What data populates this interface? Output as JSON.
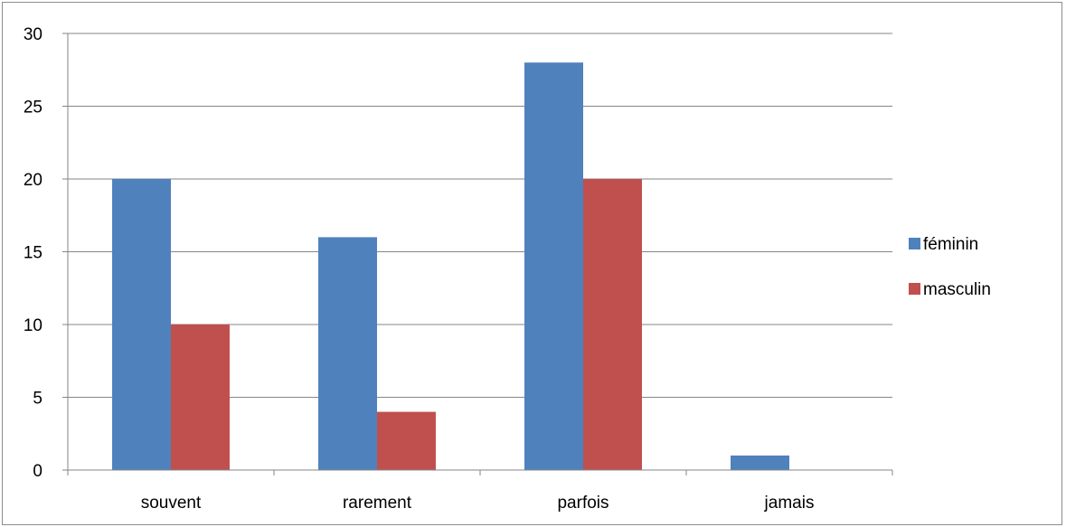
{
  "chart_data": {
    "type": "bar",
    "title": "",
    "xlabel": "",
    "ylabel": "",
    "categories": [
      "souvent",
      "rarement",
      "parfois",
      "jamais"
    ],
    "series": [
      {
        "name": "féminin",
        "values": [
          20,
          16,
          28,
          1
        ],
        "color": "#4f81bd"
      },
      {
        "name": "masculin",
        "values": [
          10,
          4,
          20,
          0
        ],
        "color": "#c0504d"
      }
    ],
    "ylim": [
      0,
      30
    ],
    "yticks": [
      0,
      5,
      10,
      15,
      20,
      25,
      30
    ],
    "grid": true,
    "legend": "right"
  }
}
